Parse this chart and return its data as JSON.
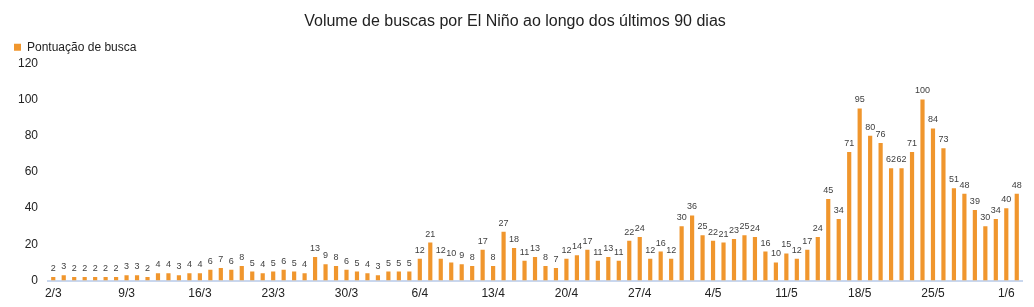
{
  "chart_data": {
    "type": "bar",
    "title": "Volume de buscas por El Niño ao longo dos últimos 90 dias",
    "categories": [
      "2/3",
      null,
      null,
      null,
      null,
      null,
      null,
      "9/3",
      null,
      null,
      null,
      null,
      null,
      null,
      "16/3",
      null,
      null,
      null,
      null,
      null,
      null,
      "23/3",
      null,
      null,
      null,
      null,
      null,
      null,
      "30/3",
      null,
      null,
      null,
      null,
      null,
      null,
      "6/4",
      null,
      null,
      null,
      null,
      null,
      null,
      "13/4",
      null,
      null,
      null,
      null,
      null,
      null,
      "20/4",
      null,
      null,
      null,
      null,
      null,
      null,
      "27/4",
      null,
      null,
      null,
      null,
      null,
      null,
      "4/5",
      null,
      null,
      null,
      null,
      null,
      null,
      "11/5",
      null,
      null,
      null,
      null,
      null,
      null,
      "18/5",
      null,
      null,
      null,
      null,
      null,
      null,
      "25/5",
      null,
      null,
      null,
      null,
      null,
      null,
      "1/6",
      null
    ],
    "series": [
      {
        "name": "Pontuação de busca",
        "color": "#f0962d",
        "values": [
          2,
          3,
          2,
          2,
          2,
          2,
          2,
          3,
          3,
          2,
          4,
          4,
          3,
          4,
          4,
          6,
          7,
          6,
          8,
          5,
          4,
          5,
          6,
          5,
          4,
          13,
          9,
          8,
          6,
          5,
          4,
          3,
          5,
          5,
          5,
          12,
          21,
          12,
          10,
          9,
          8,
          17,
          8,
          27,
          18,
          11,
          13,
          8,
          7,
          12,
          14,
          17,
          11,
          13,
          11,
          22,
          24,
          12,
          16,
          12,
          30,
          36,
          25,
          22,
          21,
          23,
          25,
          24,
          16,
          10,
          15,
          12,
          17,
          24,
          45,
          34,
          71,
          95,
          80,
          76,
          62,
          62,
          71,
          100,
          84,
          73,
          51,
          48,
          39,
          30,
          34,
          40,
          48
        ]
      }
    ],
    "ylim": [
      0,
      120
    ],
    "yticks": [
      0,
      20,
      40,
      60,
      80,
      100,
      120
    ],
    "grid": false,
    "legend": "top left",
    "data_labels": true
  }
}
